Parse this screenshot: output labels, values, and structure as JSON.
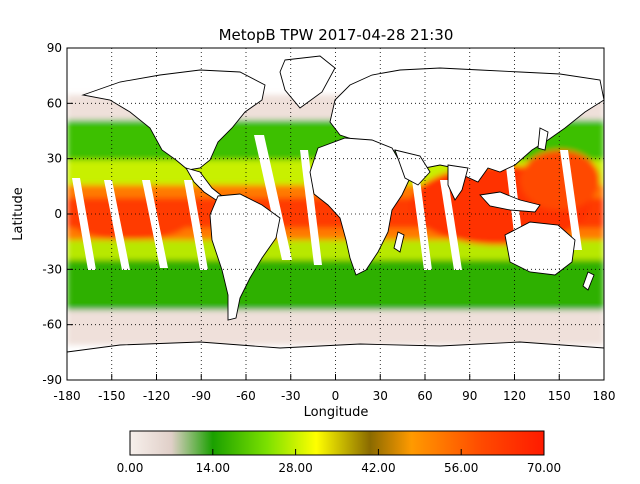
{
  "map": {
    "title": "MetopB TPW 2017-04-28 21:30",
    "xlabel": "Longitude",
    "ylabel": "Latitude",
    "lon_ticks": [
      "-180",
      "-150",
      "-120",
      "-90",
      "-60",
      "-30",
      "0",
      "30",
      "60",
      "90",
      "120",
      "150",
      "180"
    ],
    "lat_ticks": [
      "90",
      "60",
      "30",
      "0",
      "-30",
      "-60",
      "-90"
    ],
    "lon_range": [
      -180,
      180
    ],
    "lat_range": [
      -90,
      90
    ],
    "colorbar": {
      "labels": [
        "0.00",
        "14.00",
        "28.00",
        "42.00",
        "56.00",
        "70.00"
      ],
      "range": [
        0,
        70
      ],
      "colors": [
        "#f7f0ec",
        "#e6d6d0",
        "#1aa000",
        "#7be000",
        "#ffff00",
        "#8a6a00",
        "#ff9a00",
        "#ff4a00",
        "#ff1a00"
      ]
    }
  }
}
